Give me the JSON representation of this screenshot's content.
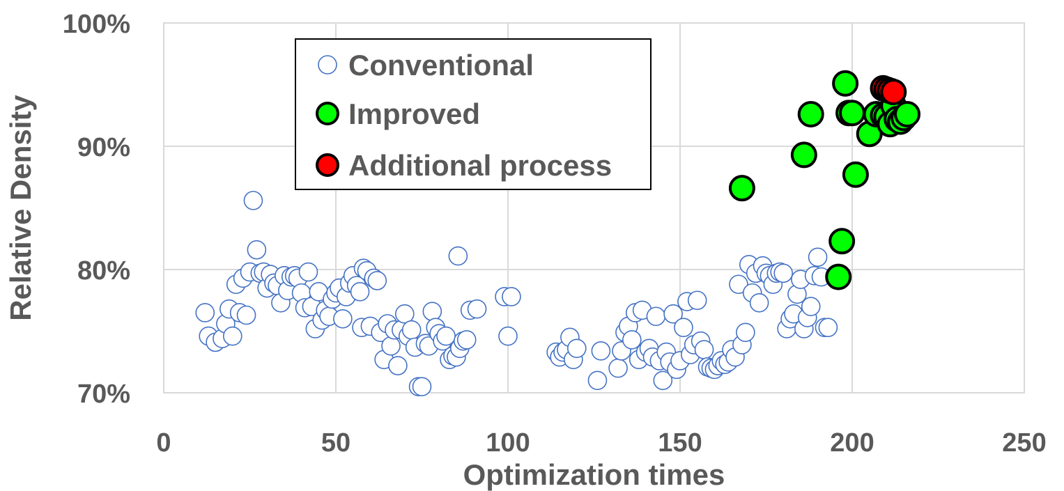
{
  "chart_data": {
    "type": "scatter",
    "title": "",
    "xlabel": "Optimization times",
    "ylabel": "Relative Density",
    "xlim": [
      0,
      250
    ],
    "ylim": [
      70,
      100
    ],
    "x_ticks": [
      "0",
      "50",
      "100",
      "150",
      "200",
      "250"
    ],
    "y_ticks": [
      "70%",
      "80%",
      "90%",
      "100%"
    ],
    "grid": true,
    "legend_position": "top-left",
    "series": [
      {
        "name": "Conventional",
        "marker": "hollow-circle",
        "color": "#4472C4",
        "fill": "#ffffff",
        "points": [
          [
            12,
            76.5
          ],
          [
            13,
            74.6
          ],
          [
            15,
            74.1
          ],
          [
            17,
            74.4
          ],
          [
            18,
            75.6
          ],
          [
            19,
            76.8
          ],
          [
            20,
            74.6
          ],
          [
            21,
            78.8
          ],
          [
            22,
            76.5
          ],
          [
            23,
            79.3
          ],
          [
            24,
            76.3
          ],
          [
            25,
            79.8
          ],
          [
            26,
            85.6
          ],
          [
            27,
            81.6
          ],
          [
            28,
            79.7
          ],
          [
            29,
            79.8
          ],
          [
            30,
            78.5
          ],
          [
            31,
            79.6
          ],
          [
            32,
            78.9
          ],
          [
            33,
            78.7
          ],
          [
            34,
            77.3
          ],
          [
            35,
            79.5
          ],
          [
            36,
            78.3
          ],
          [
            37,
            79.4
          ],
          [
            38,
            79.5
          ],
          [
            39,
            79.3
          ],
          [
            40,
            78.1
          ],
          [
            41,
            76.9
          ],
          [
            42,
            79.8
          ],
          [
            43,
            77.0
          ],
          [
            44,
            75.2
          ],
          [
            45,
            78.2
          ],
          [
            46,
            75.9
          ],
          [
            47,
            76.7
          ],
          [
            48,
            76.2
          ],
          [
            49,
            77.6
          ],
          [
            50,
            78.1
          ],
          [
            51,
            78.5
          ],
          [
            52,
            76.0
          ],
          [
            53,
            77.8
          ],
          [
            54,
            78.9
          ],
          [
            55,
            79.5
          ],
          [
            56,
            78.7
          ],
          [
            57,
            78.2
          ],
          [
            57.5,
            75.3
          ],
          [
            58,
            80.1
          ],
          [
            59,
            79.9
          ],
          [
            60,
            75.4
          ],
          [
            61,
            79.3
          ],
          [
            62,
            79.1
          ],
          [
            63,
            74.9
          ],
          [
            64,
            72.7
          ],
          [
            65,
            75.6
          ],
          [
            66,
            73.8
          ],
          [
            67,
            75.1
          ],
          [
            68,
            72.2
          ],
          [
            69,
            75.1
          ],
          [
            70,
            76.4
          ],
          [
            71,
            74.6
          ],
          [
            72,
            75.1
          ],
          [
            73,
            73.7
          ],
          [
            74,
            70.5
          ],
          [
            75,
            70.5
          ],
          [
            76,
            74.0
          ],
          [
            77,
            73.8
          ],
          [
            78,
            76.6
          ],
          [
            79,
            75.3
          ],
          [
            80,
            74.8
          ],
          [
            81,
            74.2
          ],
          [
            82,
            74.6
          ],
          [
            83,
            72.7
          ],
          [
            84,
            73.0
          ],
          [
            85,
            72.9
          ],
          [
            85.5,
            81.1
          ],
          [
            86,
            73.6
          ],
          [
            87,
            74.2
          ],
          [
            88,
            74.3
          ],
          [
            89,
            76.7
          ],
          [
            91,
            76.8
          ],
          [
            99,
            77.8
          ],
          [
            100,
            74.6
          ],
          [
            101,
            77.8
          ],
          [
            114,
            73.3
          ],
          [
            115,
            72.9
          ],
          [
            116,
            73.3
          ],
          [
            117,
            73.5
          ],
          [
            118,
            74.5
          ],
          [
            119,
            72.7
          ],
          [
            120,
            73.6
          ],
          [
            126,
            71.0
          ],
          [
            127,
            73.4
          ],
          [
            132,
            72.0
          ],
          [
            133,
            73.4
          ],
          [
            134,
            74.9
          ],
          [
            135,
            75.4
          ],
          [
            136,
            74.3
          ],
          [
            137,
            76.5
          ],
          [
            138,
            72.7
          ],
          [
            139,
            76.7
          ],
          [
            140,
            73.3
          ],
          [
            141,
            73.6
          ],
          [
            142,
            72.9
          ],
          [
            143,
            76.2
          ],
          [
            144,
            72.6
          ],
          [
            145,
            71.0
          ],
          [
            146,
            73.3
          ],
          [
            147,
            72.5
          ],
          [
            148,
            76.4
          ],
          [
            149,
            71.9
          ],
          [
            150,
            72.6
          ],
          [
            151,
            75.3
          ],
          [
            152,
            77.4
          ],
          [
            153,
            73.1
          ],
          [
            154,
            73.9
          ],
          [
            155,
            77.5
          ],
          [
            156,
            74.2
          ],
          [
            157,
            73.5
          ],
          [
            158,
            72.1
          ],
          [
            159,
            72.0
          ],
          [
            160,
            71.9
          ],
          [
            161,
            72.2
          ],
          [
            162,
            72.6
          ],
          [
            163,
            72.3
          ],
          [
            164,
            72.5
          ],
          [
            165,
            73.5
          ],
          [
            166,
            72.9
          ],
          [
            167,
            78.8
          ],
          [
            168,
            73.9
          ],
          [
            169,
            74.9
          ],
          [
            170,
            80.4
          ],
          [
            171,
            78.1
          ],
          [
            172,
            79.7
          ],
          [
            173,
            77.3
          ],
          [
            174,
            80.3
          ],
          [
            175,
            79.7
          ],
          [
            176,
            79.5
          ],
          [
            177,
            78.8
          ],
          [
            178,
            79.7
          ],
          [
            179,
            79.8
          ],
          [
            180,
            79.7
          ],
          [
            181,
            75.2
          ],
          [
            182,
            76.0
          ],
          [
            183,
            76.4
          ],
          [
            184,
            78.0
          ],
          [
            185,
            79.2
          ],
          [
            186,
            75.2
          ],
          [
            187,
            76.1
          ],
          [
            188,
            77.0
          ],
          [
            189,
            79.5
          ],
          [
            190,
            81.0
          ],
          [
            191,
            79.4
          ],
          [
            192,
            75.3
          ],
          [
            193,
            75.3
          ]
        ]
      },
      {
        "name": "Improved",
        "marker": "filled-circle",
        "color": "#000000",
        "fill": "#00FF00",
        "points": [
          [
            168,
            86.6
          ],
          [
            186,
            89.3
          ],
          [
            188,
            92.6
          ],
          [
            196,
            79.4
          ],
          [
            197,
            82.3
          ],
          [
            198,
            95.1
          ],
          [
            199,
            92.7
          ],
          [
            200,
            92.7
          ],
          [
            201,
            87.7
          ],
          [
            205,
            91.0
          ],
          [
            207,
            92.6
          ],
          [
            209,
            92.5
          ],
          [
            210,
            92.4
          ],
          [
            211,
            91.8
          ],
          [
            212,
            93.3
          ],
          [
            213,
            92.2
          ],
          [
            214,
            92.0
          ],
          [
            215,
            92.3
          ],
          [
            216,
            92.6
          ]
        ]
      },
      {
        "name": "Additional process",
        "marker": "filled-circle",
        "color": "#000000",
        "fill": "#FF0000",
        "points": [
          [
            209,
            94.7
          ],
          [
            210,
            94.6
          ],
          [
            211,
            94.5
          ],
          [
            212,
            94.4
          ]
        ]
      }
    ]
  }
}
